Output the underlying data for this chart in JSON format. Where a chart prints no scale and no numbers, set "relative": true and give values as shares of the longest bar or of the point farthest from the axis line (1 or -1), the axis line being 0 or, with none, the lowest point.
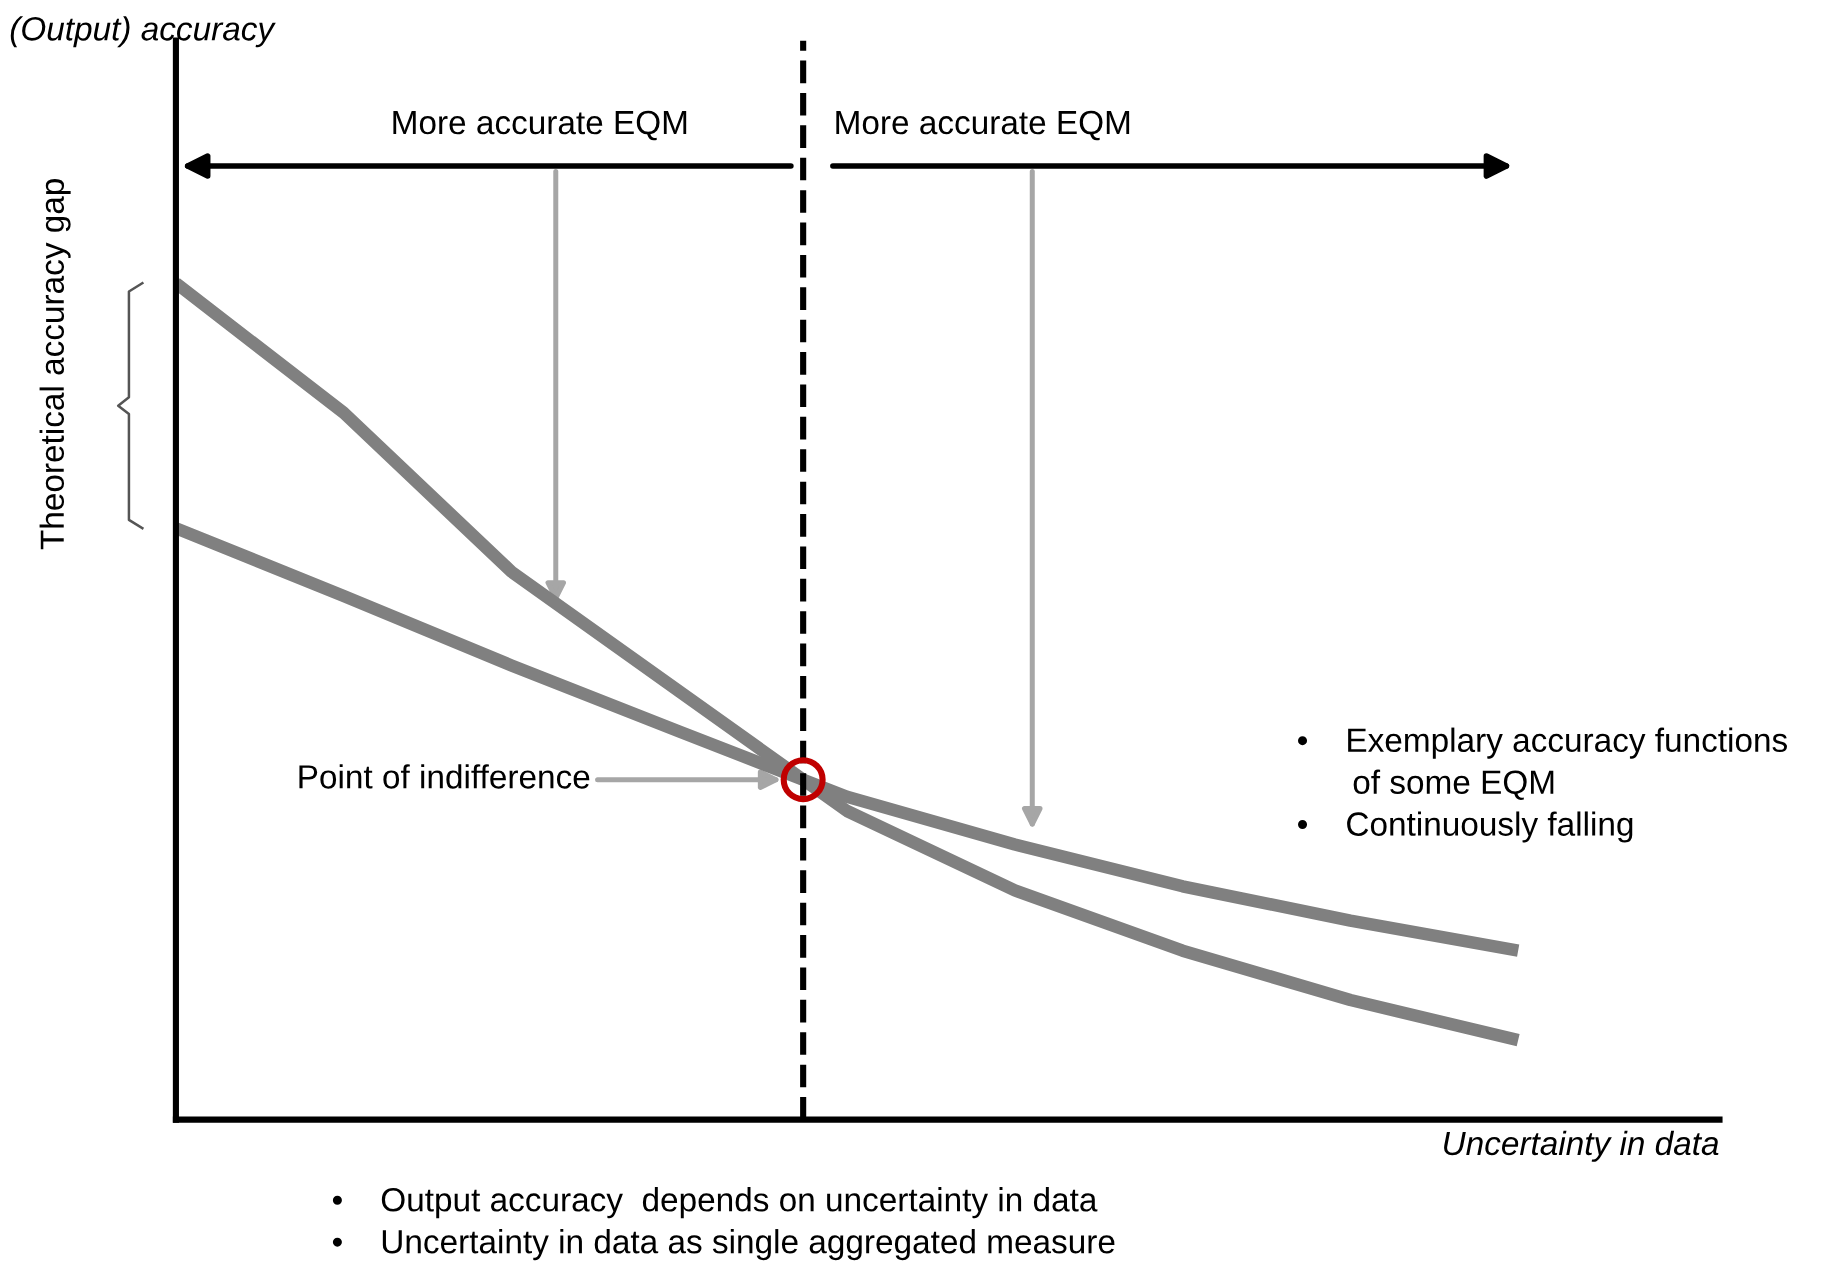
{
  "chart_data": {
    "type": "line",
    "relative": true,
    "xlabel": "Uncertainty in data",
    "categories": [
      null,
      null,
      null,
      null,
      null,
      null,
      null,
      null,
      null
    ],
    "series": [
      {
        "color": "#808080",
        "values": [
          1.0,
          0.845,
          0.655,
          0.512,
          0.369,
          0.274,
          0.202,
          0.143,
          0.095
        ]
      },
      {
        "color": "#808080",
        "values": [
          0.707,
          0.626,
          0.543,
          0.464,
          0.386,
          0.329,
          0.279,
          0.238,
          0.202
        ]
      }
    ],
    "annotations": [
      "(Output) accuracy",
      "More accurate EQM",
      "More accurate EQM",
      "Theoretical accuracy gap",
      "Point of indifference",
      "•    Exemplary accuracy functions\n      of some EQM\n•    Continuously falling",
      "•    Output accuracy  depends on uncertainty in data\n•    Uncertainty in data as single aggregated measure"
    ],
    "legend": false,
    "marker": "none",
    "line_style": "solid"
  }
}
